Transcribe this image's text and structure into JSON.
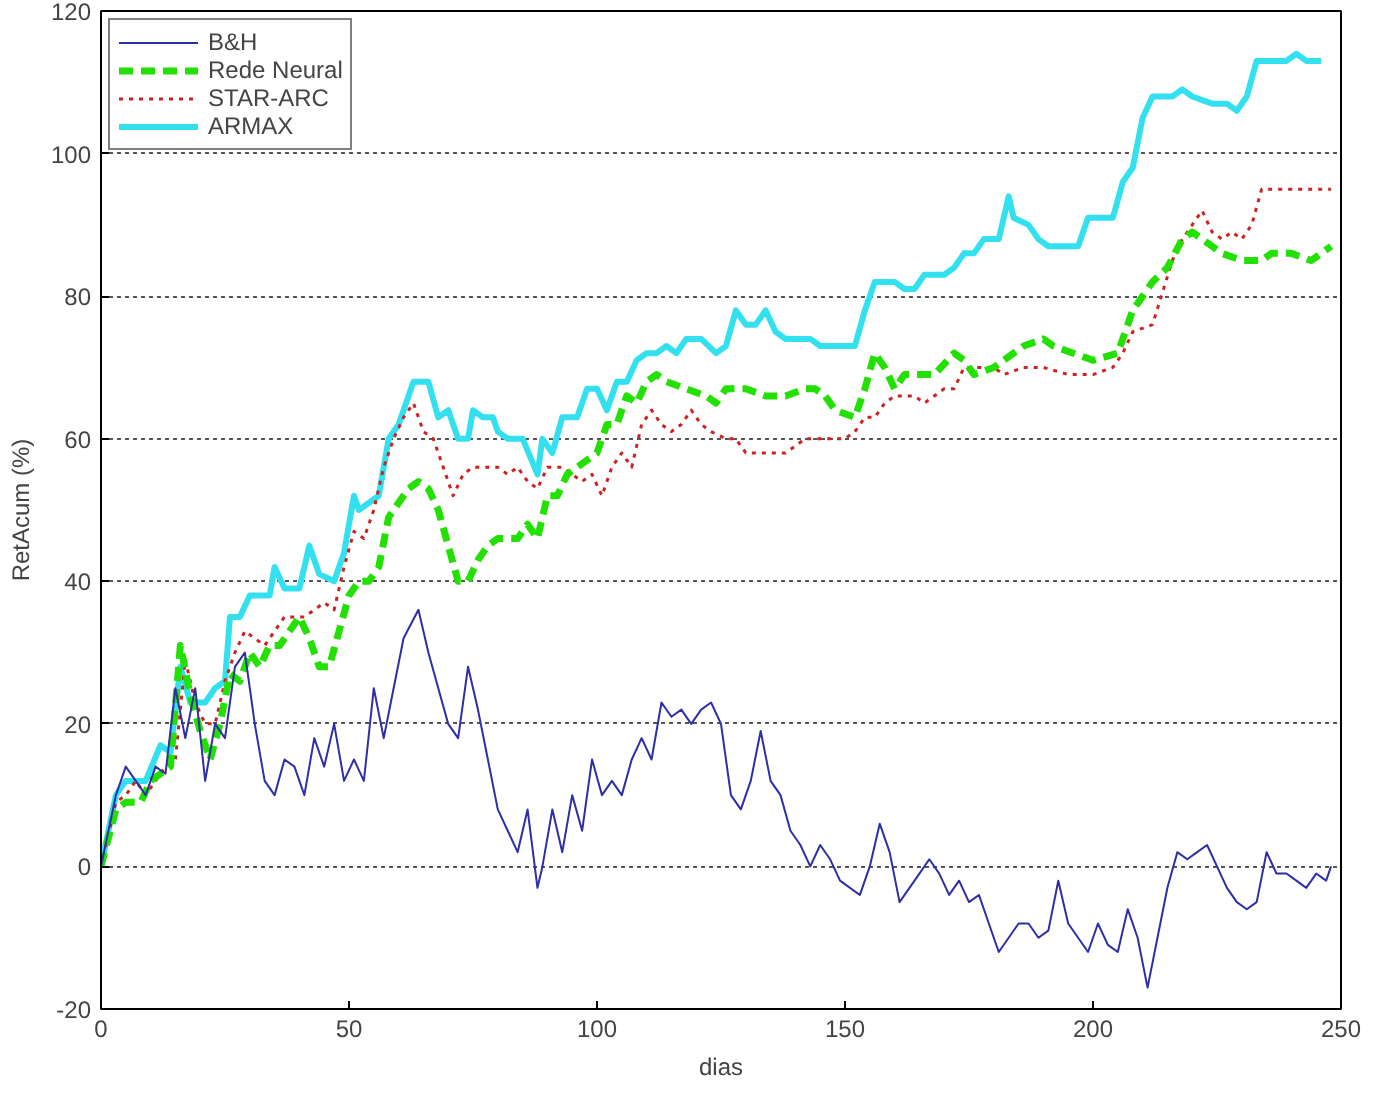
{
  "chart_data": {
    "type": "line",
    "xlabel": "dias",
    "ylabel": "RetAcum (%)",
    "xlim": [
      0,
      250
    ],
    "ylim": [
      -20,
      120
    ],
    "xticks": [
      0,
      50,
      100,
      150,
      200,
      250
    ],
    "yticks": [
      -20,
      0,
      20,
      40,
      60,
      80,
      100,
      120
    ],
    "grid": "y",
    "legend": "top left",
    "series": [
      {
        "name": "B&H",
        "color": "#2e2ea6",
        "line_style": "solid",
        "x": [
          0,
          3,
          5,
          7,
          9,
          11,
          13,
          15,
          17,
          19,
          21,
          23,
          25,
          27,
          29,
          31,
          33,
          35,
          37,
          39,
          41,
          43,
          45,
          47,
          49,
          51,
          53,
          55,
          57,
          59,
          61,
          64,
          66,
          68,
          70,
          72,
          74,
          76,
          78,
          80,
          82,
          84,
          86,
          88,
          89,
          91,
          93,
          95,
          97,
          99,
          101,
          103,
          105,
          107,
          109,
          111,
          113,
          115,
          117,
          119,
          121,
          123,
          125,
          127,
          129,
          131,
          133,
          135,
          137,
          139,
          141,
          143,
          145,
          147,
          149,
          151,
          153,
          155,
          157,
          159,
          161,
          163,
          165,
          167,
          169,
          171,
          173,
          175,
          177,
          179,
          181,
          183,
          185,
          187,
          189,
          191,
          193,
          195,
          197,
          199,
          201,
          203,
          205,
          207,
          209,
          211,
          213,
          215,
          217,
          219,
          221,
          223,
          225,
          227,
          229,
          231,
          233,
          235,
          237,
          239,
          241,
          243,
          245,
          247,
          248
        ],
        "values": [
          0,
          10,
          14,
          12,
          10,
          14,
          13,
          25,
          18,
          25,
          12,
          20,
          18,
          28,
          30,
          20,
          12,
          10,
          15,
          14,
          10,
          18,
          14,
          20,
          12,
          15,
          12,
          25,
          18,
          25,
          32,
          36,
          30,
          25,
          20,
          18,
          28,
          22,
          15,
          8,
          5,
          2,
          8,
          -3,
          0,
          8,
          2,
          10,
          5,
          15,
          10,
          12,
          10,
          15,
          18,
          15,
          23,
          21,
          22,
          20,
          22,
          23,
          20,
          10,
          8,
          12,
          19,
          12,
          10,
          5,
          3,
          0,
          3,
          1,
          -2,
          -3,
          -4,
          0,
          6,
          2,
          -5,
          -3,
          -1,
          1,
          -1,
          -4,
          -2,
          -5,
          -4,
          -8,
          -12,
          -10,
          -8,
          -8,
          -10,
          -9,
          -2,
          -8,
          -10,
          -12,
          -8,
          -11,
          -12,
          -6,
          -10,
          -17,
          -10,
          -3,
          2,
          1,
          2,
          3,
          0,
          -3,
          -5,
          -6,
          -5,
          2,
          -1,
          -1,
          -2,
          -3,
          -1,
          -2,
          0
        ]
      },
      {
        "name": "Rede Neural",
        "color": "#22e000",
        "line_style": "dashed",
        "x": [
          0,
          3,
          5,
          8,
          10,
          12,
          14,
          16,
          18,
          20,
          22,
          24,
          26,
          28,
          30,
          32,
          34,
          36,
          38,
          40,
          42,
          44,
          46,
          48,
          50,
          52,
          54,
          56,
          58,
          60,
          62,
          64,
          66,
          68,
          70,
          72,
          74,
          76,
          78,
          80,
          84,
          86,
          88,
          90,
          92,
          94,
          96,
          98,
          100,
          102,
          104,
          106,
          108,
          110,
          112,
          114,
          118,
          122,
          124,
          126,
          130,
          134,
          138,
          142,
          144,
          146,
          148,
          152,
          154,
          156,
          158,
          160,
          162,
          168,
          172,
          174,
          176,
          180,
          184,
          186,
          190,
          192,
          196,
          200,
          205,
          208,
          210,
          212,
          215,
          218,
          220,
          222,
          226,
          230,
          234,
          236,
          240,
          244,
          248
        ],
        "values": [
          0,
          8,
          9,
          9,
          12,
          13,
          14,
          31,
          24,
          19,
          15,
          20,
          27,
          26,
          30,
          28,
          31,
          31,
          33,
          35,
          32,
          28,
          28,
          33,
          38,
          40,
          40,
          42,
          49,
          51,
          53,
          54,
          53,
          50,
          45,
          40,
          40,
          43,
          45,
          46,
          46,
          48,
          46,
          52,
          52,
          55,
          56,
          57,
          58,
          62,
          62,
          66,
          65,
          68,
          69,
          68,
          67,
          66,
          65,
          67,
          67,
          66,
          66,
          67,
          67,
          66,
          64,
          63,
          67,
          72,
          70,
          67,
          69,
          69,
          72,
          71,
          69,
          70,
          72,
          73,
          74,
          73,
          72,
          71,
          72,
          78,
          80,
          82,
          84,
          88,
          89,
          88,
          86,
          85,
          85,
          86,
          86,
          85,
          87
        ]
      },
      {
        "name": "STAR-ARC",
        "color": "#cc2222",
        "line_style": "dotted",
        "x": [
          0,
          3,
          5,
          7,
          9,
          11,
          13,
          15,
          17,
          19,
          21,
          23,
          25,
          27,
          29,
          31,
          33,
          35,
          37,
          41,
          43,
          45,
          47,
          49,
          51,
          53,
          55,
          57,
          59,
          61,
          63,
          65,
          67,
          69,
          71,
          73,
          75,
          80,
          82,
          84,
          86,
          88,
          90,
          93,
          95,
          97,
          99,
          101,
          103,
          105,
          107,
          109,
          111,
          113,
          115,
          117,
          119,
          121,
          123,
          126,
          128,
          130,
          138,
          140,
          142,
          150,
          152,
          154,
          156,
          158,
          160,
          164,
          166,
          168,
          170,
          172,
          174,
          180,
          182,
          186,
          190,
          195,
          200,
          204,
          206,
          208,
          212,
          216,
          218,
          220,
          222,
          224,
          226,
          228,
          230,
          232,
          234,
          248
        ],
        "values": [
          0,
          9,
          10,
          12,
          10,
          12,
          14,
          15,
          29,
          23,
          20,
          20,
          26,
          30,
          33,
          32,
          31,
          33,
          35,
          35,
          36,
          37,
          36,
          42,
          47,
          46,
          50,
          56,
          60,
          63,
          65,
          61,
          60,
          56,
          52,
          55,
          56,
          56,
          55,
          56,
          54,
          53,
          56,
          56,
          55,
          54,
          55,
          52,
          56,
          58,
          56,
          62,
          64,
          62,
          61,
          62,
          64,
          62,
          61,
          60,
          60,
          58,
          58,
          59,
          60,
          60,
          61,
          63,
          63,
          65,
          66,
          66,
          65,
          66,
          67,
          67,
          70,
          70,
          69,
          70,
          70,
          69,
          69,
          70,
          72,
          75,
          76,
          85,
          88,
          90,
          92,
          89,
          88,
          89,
          88,
          90,
          95,
          95
        ]
      },
      {
        "name": "ARMAX",
        "color": "#33e0f0",
        "line_style": "solid",
        "x": [
          0,
          3,
          5,
          9,
          12,
          14,
          16,
          18,
          21,
          23,
          25,
          26,
          28,
          30,
          34,
          35,
          37,
          40,
          42,
          44,
          47,
          49,
          51,
          52,
          56,
          58,
          60,
          62,
          63,
          66,
          68,
          70,
          72,
          74,
          75,
          77,
          79,
          80,
          82,
          85,
          88,
          89,
          91,
          93,
          96,
          98,
          100,
          102,
          104,
          106,
          108,
          110,
          112,
          114,
          116,
          118,
          121,
          124,
          126,
          128,
          130,
          132,
          134,
          136,
          138,
          143,
          145,
          152,
          154,
          156,
          160,
          162,
          164,
          166,
          170,
          172,
          174,
          176,
          178,
          181,
          183,
          184,
          187,
          189,
          191,
          197,
          199,
          204,
          206,
          208,
          210,
          212,
          216,
          218,
          220,
          224,
          227,
          229,
          231,
          233,
          239,
          241,
          243,
          246
        ],
        "values": [
          0,
          10,
          12,
          12,
          17,
          16,
          28,
          23,
          23,
          25,
          26,
          35,
          35,
          38,
          38,
          42,
          39,
          39,
          45,
          41,
          40,
          44,
          52,
          50,
          52,
          60,
          62,
          66,
          68,
          68,
          63,
          64,
          60,
          60,
          64,
          63,
          63,
          61,
          60,
          60,
          55,
          60,
          58,
          63,
          63,
          67,
          67,
          64,
          68,
          68,
          71,
          72,
          72,
          73,
          72,
          74,
          74,
          72,
          73,
          78,
          76,
          76,
          78,
          75,
          74,
          74,
          73,
          73,
          78,
          82,
          82,
          81,
          81,
          83,
          83,
          84,
          86,
          86,
          88,
          88,
          94,
          91,
          90,
          88,
          87,
          87,
          91,
          91,
          96,
          98,
          105,
          108,
          108,
          109,
          108,
          107,
          107,
          106,
          108,
          113,
          113,
          114,
          113,
          113
        ]
      }
    ]
  }
}
